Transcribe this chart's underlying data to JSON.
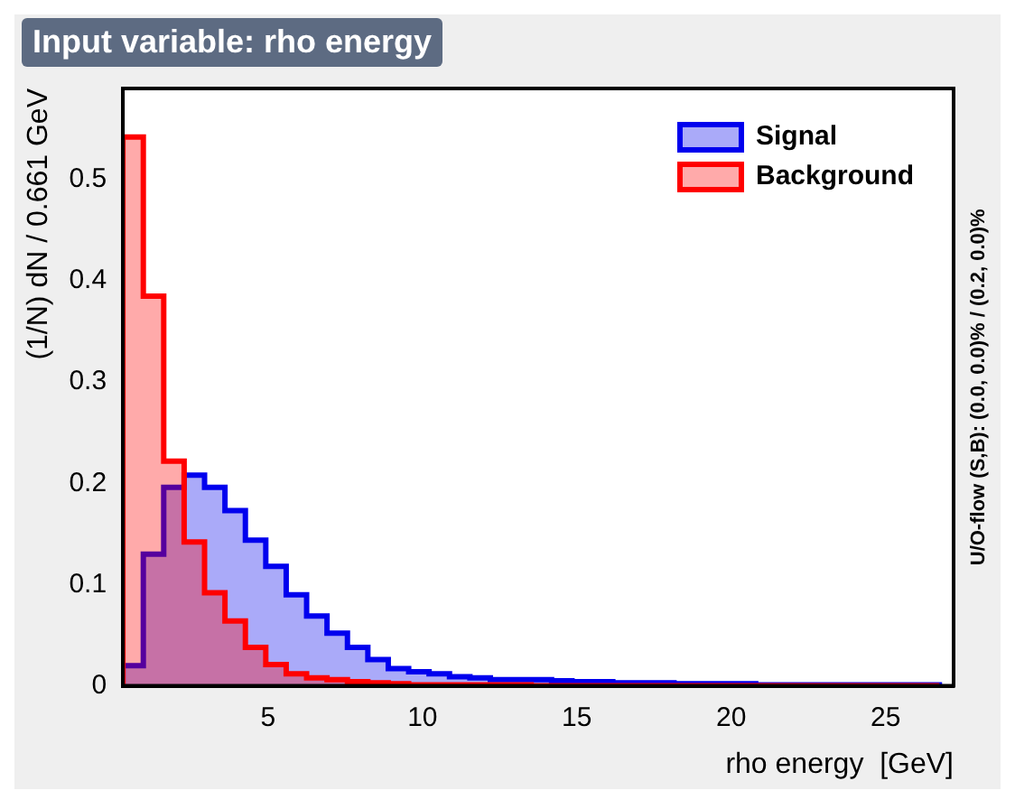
{
  "chart_data": {
    "type": "histogram",
    "title": "Input variable: rho energy",
    "xlabel": "rho energy  [GeV]",
    "ylabel": "(1/N) dN / 0.661 GeV",
    "bins": [
      0.3,
      0.961,
      1.622,
      2.283,
      2.944,
      3.605,
      4.266,
      4.927,
      5.588,
      6.249,
      6.91,
      7.571,
      8.232,
      8.893,
      9.554,
      10.215,
      10.876,
      11.537,
      12.198,
      12.859,
      13.52,
      14.181,
      14.842,
      15.503,
      16.164,
      16.825,
      17.486,
      18.147,
      18.808,
      19.469,
      20.13,
      20.791,
      21.452,
      22.113,
      22.774,
      23.435,
      24.096,
      24.757,
      25.418,
      26.079,
      26.74
    ],
    "series": [
      {
        "name": "Signal",
        "color": "#0000ee",
        "values": [
          0.02,
          0.13,
          0.196,
          0.208,
          0.196,
          0.173,
          0.144,
          0.118,
          0.09,
          0.069,
          0.052,
          0.038,
          0.026,
          0.017,
          0.014,
          0.012,
          0.009,
          0.008,
          0.006,
          0.006,
          0.006,
          0.005,
          0.004,
          0.004,
          0.003,
          0.003,
          0.003,
          0.002,
          0.002,
          0.002,
          0.002,
          0.001,
          0.001,
          0.001,
          0.001,
          0.001,
          0.001,
          0.001,
          0.001,
          0.001
        ]
      },
      {
        "name": "Background",
        "color": "#ff0000",
        "values": [
          0.542,
          0.385,
          0.222,
          0.142,
          0.092,
          0.064,
          0.038,
          0.021,
          0.012,
          0.008,
          0.006,
          0.004,
          0.003,
          0.002,
          0.001,
          0.001,
          0.001,
          0.001,
          0.001,
          0.001,
          0,
          0,
          0,
          0,
          0,
          0,
          0,
          0,
          0,
          0,
          0,
          0,
          0,
          0,
          0,
          0,
          0,
          0,
          0,
          0
        ]
      }
    ],
    "xlim": [
      0.3,
      27.2
    ],
    "xticks": [
      5,
      10,
      15,
      20,
      25
    ],
    "ylim": [
      0,
      0.59
    ],
    "yticks": [
      0,
      0.1,
      0.2,
      0.3,
      0.4,
      0.5
    ],
    "grid": false,
    "legend": "top right",
    "annotations": [
      "U/O-flow (S,B): (0.0, 0.0)% / (0.2, 0.0)%"
    ]
  }
}
